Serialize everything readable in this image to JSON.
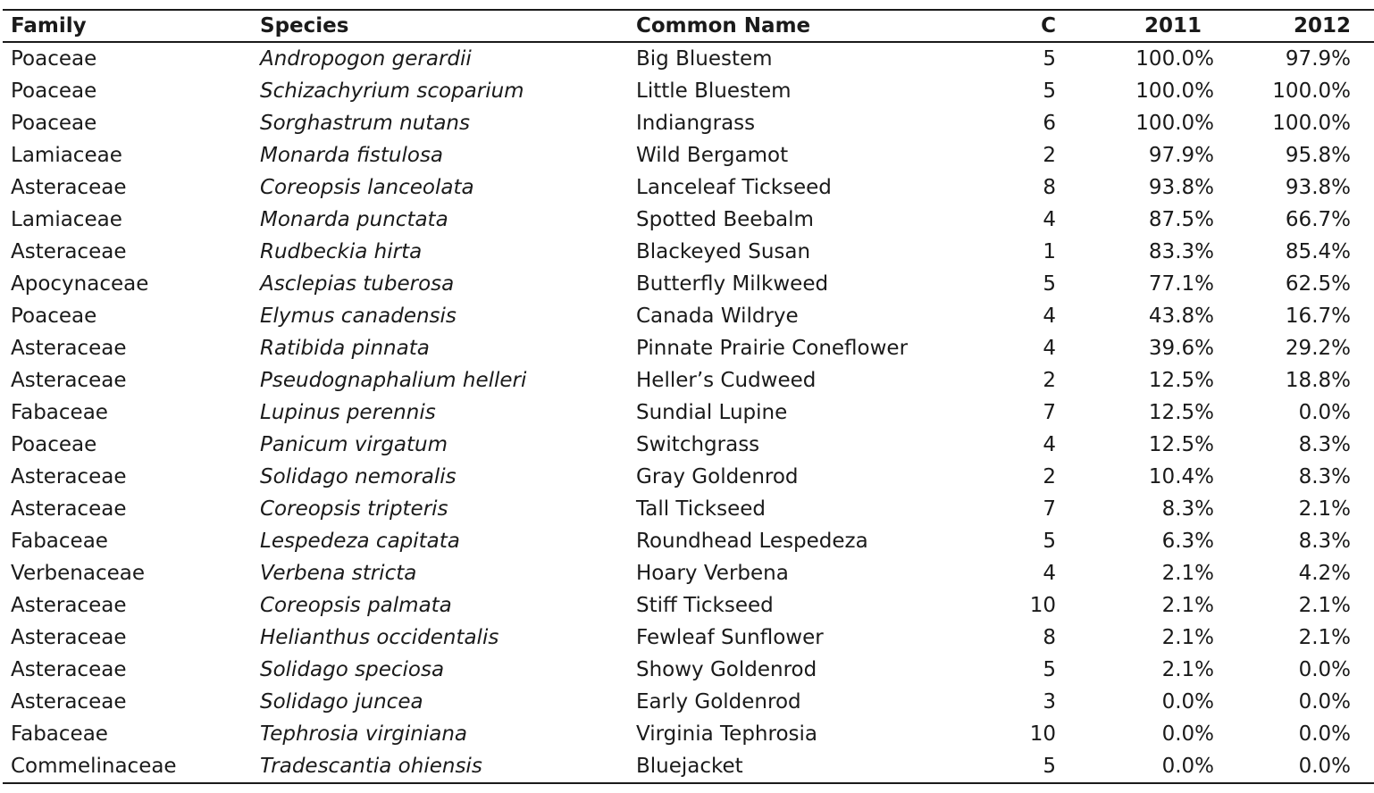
{
  "table": {
    "headers": {
      "family": "Family",
      "species": "Species",
      "common": "Common Name",
      "c": "C",
      "y2011": "2011",
      "y2012": "2012"
    },
    "rows": [
      {
        "family": "Poaceae",
        "species": "Andropogon gerardii",
        "common": "Big Bluestem",
        "c": "5",
        "y2011": "100.0%",
        "y2012": "97.9%"
      },
      {
        "family": "Poaceae",
        "species": "Schizachyrium scoparium",
        "common": "Little Bluestem",
        "c": "5",
        "y2011": "100.0%",
        "y2012": "100.0%"
      },
      {
        "family": "Poaceae",
        "species": "Sorghastrum nutans",
        "common": "Indiangrass",
        "c": "6",
        "y2011": "100.0%",
        "y2012": "100.0%"
      },
      {
        "family": "Lamiaceae",
        "species": "Monarda fistulosa",
        "common": "Wild Bergamot",
        "c": "2",
        "y2011": "97.9%",
        "y2012": "95.8%"
      },
      {
        "family": "Asteraceae",
        "species": "Coreopsis lanceolata",
        "common": "Lanceleaf Tickseed",
        "c": "8",
        "y2011": "93.8%",
        "y2012": "93.8%"
      },
      {
        "family": "Lamiaceae",
        "species": "Monarda punctata",
        "common": "Spotted Beebalm",
        "c": "4",
        "y2011": "87.5%",
        "y2012": "66.7%"
      },
      {
        "family": "Asteraceae",
        "species": "Rudbeckia hirta",
        "common": "Blackeyed Susan",
        "c": "1",
        "y2011": "83.3%",
        "y2012": "85.4%"
      },
      {
        "family": "Apocynaceae",
        "species": "Asclepias tuberosa",
        "common": "Butterfly Milkweed",
        "c": "5",
        "y2011": "77.1%",
        "y2012": "62.5%"
      },
      {
        "family": "Poaceae",
        "species": "Elymus canadensis",
        "common": "Canada Wildrye",
        "c": "4",
        "y2011": "43.8%",
        "y2012": "16.7%"
      },
      {
        "family": "Asteraceae",
        "species": "Ratibida pinnata",
        "common": "Pinnate Prairie Coneflower",
        "c": "4",
        "y2011": "39.6%",
        "y2012": "29.2%"
      },
      {
        "family": "Asteraceae",
        "species": "Pseudognaphalium helleri",
        "common": "Heller’s Cudweed",
        "c": "2",
        "y2011": "12.5%",
        "y2012": "18.8%"
      },
      {
        "family": "Fabaceae",
        "species": "Lupinus perennis",
        "common": "Sundial Lupine",
        "c": "7",
        "y2011": "12.5%",
        "y2012": "0.0%"
      },
      {
        "family": "Poaceae",
        "species": "Panicum virgatum",
        "common": "Switchgrass",
        "c": "4",
        "y2011": "12.5%",
        "y2012": "8.3%"
      },
      {
        "family": "Asteraceae",
        "species": "Solidago nemoralis",
        "common": "Gray Goldenrod",
        "c": "2",
        "y2011": "10.4%",
        "y2012": "8.3%"
      },
      {
        "family": "Asteraceae",
        "species": "Coreopsis tripteris",
        "common": "Tall Tickseed",
        "c": "7",
        "y2011": "8.3%",
        "y2012": "2.1%"
      },
      {
        "family": "Fabaceae",
        "species": "Lespedeza capitata",
        "common": "Roundhead Lespedeza",
        "c": "5",
        "y2011": "6.3%",
        "y2012": "8.3%"
      },
      {
        "family": "Verbenaceae",
        "species": "Verbena stricta",
        "common": "Hoary Verbena",
        "c": "4",
        "y2011": "2.1%",
        "y2012": "4.2%"
      },
      {
        "family": "Asteraceae",
        "species": "Coreopsis palmata",
        "common": "Stiff Tickseed",
        "c": "10",
        "y2011": "2.1%",
        "y2012": "2.1%"
      },
      {
        "family": "Asteraceae",
        "species": "Helianthus occidentalis",
        "common": "Fewleaf Sunflower",
        "c": "8",
        "y2011": "2.1%",
        "y2012": "2.1%"
      },
      {
        "family": "Asteraceae",
        "species": "Solidago speciosa",
        "common": "Showy Goldenrod",
        "c": "5",
        "y2011": "2.1%",
        "y2012": "0.0%"
      },
      {
        "family": "Asteraceae",
        "species": "Solidago juncea",
        "common": "Early Goldenrod",
        "c": "3",
        "y2011": "0.0%",
        "y2012": "0.0%"
      },
      {
        "family": "Fabaceae",
        "species": "Tephrosia virginiana",
        "common": "Virginia Tephrosia",
        "c": "10",
        "y2011": "0.0%",
        "y2012": "0.0%"
      },
      {
        "family": "Commelinaceae",
        "species": "Tradescantia ohiensis",
        "common": "Bluejacket",
        "c": "5",
        "y2011": "0.0%",
        "y2012": "0.0%"
      }
    ]
  }
}
